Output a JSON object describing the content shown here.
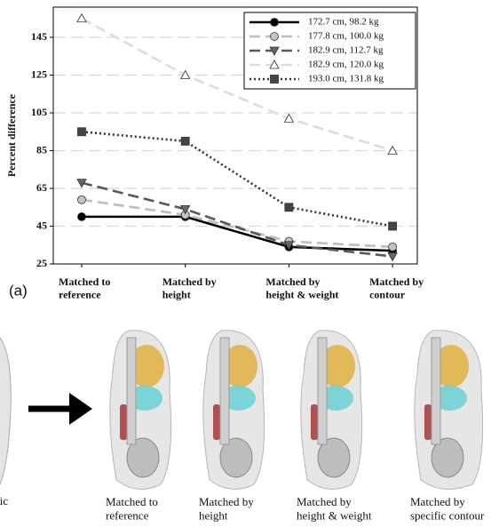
{
  "chart_data": {
    "type": "line",
    "y_label": "Percent difference",
    "categories": [
      "Matched to\nreference",
      "Matched by\nheight",
      "Matched by\nheight & weight",
      "Matched by\ncontour"
    ],
    "series": [
      {
        "name": "172.7 cm, 98.2 kg",
        "color": "#000000",
        "fill": "#000000",
        "dash": "solid",
        "marker": "circle",
        "values": [
          50,
          50,
          34,
          32
        ]
      },
      {
        "name": "177.8 cm, 100.0 kg",
        "color": "#bdbdbd",
        "fill": "#c4c4c4",
        "dash": "dashed",
        "marker": "circle",
        "values": [
          59,
          51,
          37,
          34
        ]
      },
      {
        "name": "182.9 cm, 112.7 kg",
        "color": "#595959",
        "fill": "#666666",
        "dash": "dashed",
        "marker": "triangle-down",
        "values": [
          68,
          54,
          35,
          29
        ]
      },
      {
        "name": "182.9 cm, 120.0 kg",
        "color": "#dcdcdc",
        "fill": "#ffffff",
        "dash": "dashed",
        "marker": "triangle-up",
        "values": [
          155,
          125,
          102,
          85
        ]
      },
      {
        "name": "193.0 cm, 131.8 kg",
        "color": "#333333",
        "fill": "#444444",
        "dash": "dotted",
        "marker": "square",
        "values": [
          95,
          90,
          55,
          45
        ]
      }
    ],
    "ylim": [
      25,
      161
    ],
    "yticks": [
      25,
      45,
      65,
      85,
      105,
      125,
      145
    ],
    "grid": true,
    "legend": "upper right"
  },
  "panel_label": "(a)",
  "left_fragment": "cific",
  "images": [
    {
      "caption": "Matched to\nreference"
    },
    {
      "caption": "Matched by\nheight"
    },
    {
      "caption": "Matched by\nheight & weight"
    },
    {
      "caption": "Matched by\nspecific contour"
    }
  ]
}
